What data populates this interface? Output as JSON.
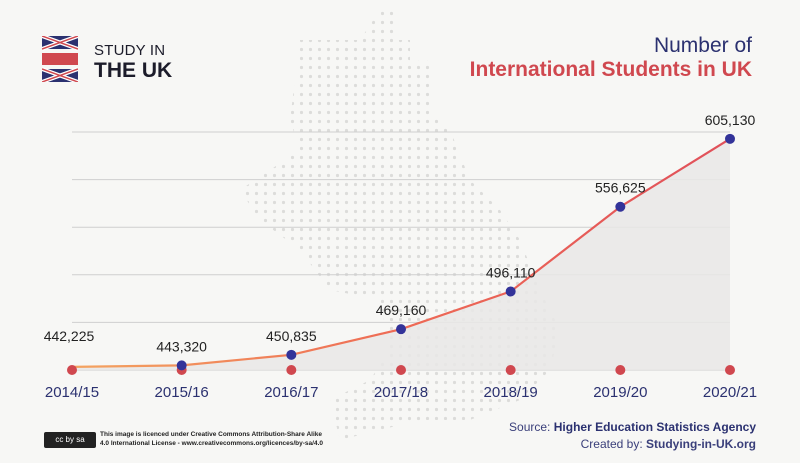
{
  "brand": {
    "line1": "STUDY IN",
    "line2": "THE UK",
    "flag_icon": "union-jack-icon"
  },
  "title": {
    "line1": "Number of",
    "line2": "International Students in UK"
  },
  "colors": {
    "navy": "#2b3170",
    "red": "#d0484f",
    "orange": "#f4a460",
    "line_end": "#e0505a",
    "marker": "#333399",
    "fill": "#e9e8e6"
  },
  "chart_data": {
    "type": "area",
    "categories": [
      "2014/15",
      "2015/16",
      "2016/17",
      "2017/18",
      "2018/19",
      "2019/20",
      "2020/21"
    ],
    "values": [
      442225,
      443320,
      450835,
      469160,
      496110,
      556625,
      605130
    ],
    "data_labels": [
      "442,225",
      "443,320",
      "450,835",
      "469,160",
      "496,110",
      "556,625",
      "605,130"
    ],
    "title": "Number of International Students in UK",
    "grid": true,
    "ylim": [
      440000,
      610000
    ]
  },
  "footer": {
    "source_label": "Source:",
    "source": "Higher Education Statistics Agency",
    "created_label": "Created by:",
    "created": "Studying-in-UK.org",
    "license_badge": "cc by sa",
    "license_text": "This image is licenced under Creative Commons Attribution-Share Alike 4.0 International License - www.creativecommons.org/licences/by-sa/4.0"
  }
}
